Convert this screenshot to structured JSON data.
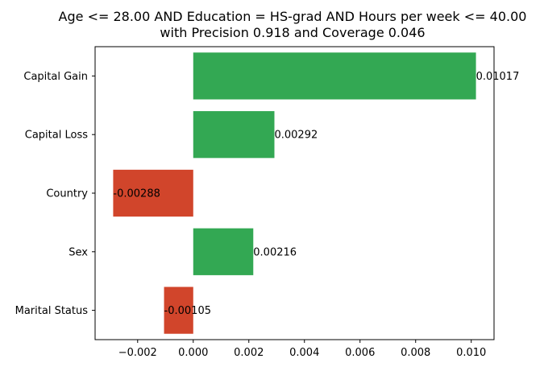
{
  "chart_data": {
    "type": "bar",
    "orientation": "horizontal",
    "title_lines": [
      "Age <= 28.00 AND Education = HS-grad AND Hours per week <= 40.00",
      "with Precision 0.918 and Coverage 0.046"
    ],
    "categories": [
      "Capital Gain",
      "Capital Loss",
      "Country",
      "Sex",
      "Marital Status"
    ],
    "values": [
      0.01017,
      0.00292,
      -0.00288,
      0.00216,
      -0.00105
    ],
    "data_labels": [
      "0.01017",
      "0.00292",
      "-0.00288",
      "0.00216",
      "-0.00105"
    ],
    "xlim": [
      -0.00353,
      0.01082
    ],
    "x_ticks": [
      -0.002,
      0.0,
      0.002,
      0.004,
      0.006,
      0.008,
      0.01
    ],
    "x_tick_labels": [
      "−0.002",
      "0.000",
      "0.002",
      "0.004",
      "0.006",
      "0.008",
      "0.010"
    ],
    "xlabel": "",
    "ylabel": "",
    "grid": false,
    "colors": {
      "positive": "#33a853",
      "negative": "#d1452b"
    }
  }
}
